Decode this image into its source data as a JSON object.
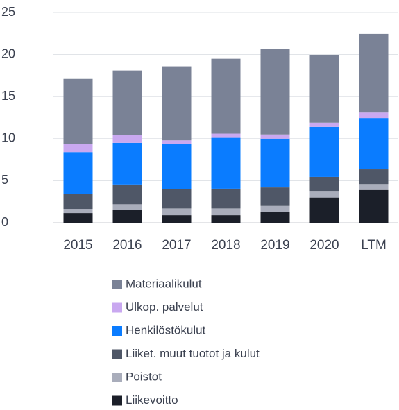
{
  "chart_data": {
    "type": "stacked_bar",
    "categories": [
      "2015",
      "2016",
      "2017",
      "2018",
      "2019",
      "2020",
      "LTM"
    ],
    "series": [
      {
        "name": "Liikevoitto",
        "color": "#1b1f29",
        "values": [
          1.15,
          1.5,
          0.9,
          0.9,
          1.3,
          3.0,
          3.9
        ]
      },
      {
        "name": "Poistot",
        "color": "#a9adbb",
        "values": [
          0.5,
          0.7,
          0.8,
          0.8,
          0.7,
          0.7,
          0.7
        ]
      },
      {
        "name": "Liiket. muut tuotot ja kulut",
        "color": "#4f5767",
        "values": [
          1.75,
          2.35,
          2.3,
          2.35,
          2.2,
          1.75,
          1.75
        ]
      },
      {
        "name": "Henkilöstökulut",
        "color": "#0a7cff",
        "values": [
          5.0,
          4.95,
          5.4,
          6.05,
          5.8,
          5.95,
          6.1
        ]
      },
      {
        "name": "Ulkop. palvelut",
        "color": "#c9a8f0",
        "values": [
          1.0,
          0.9,
          0.4,
          0.5,
          0.5,
          0.5,
          0.65
        ]
      },
      {
        "name": "Materiaalikulut",
        "color": "#7a8296",
        "values": [
          7.7,
          7.7,
          8.8,
          8.9,
          10.2,
          8.0,
          9.35
        ]
      }
    ],
    "ylim": [
      0,
      25
    ],
    "yticks": [
      0,
      5,
      10,
      15,
      20,
      25
    ],
    "grid": true,
    "legend": "bottom"
  }
}
